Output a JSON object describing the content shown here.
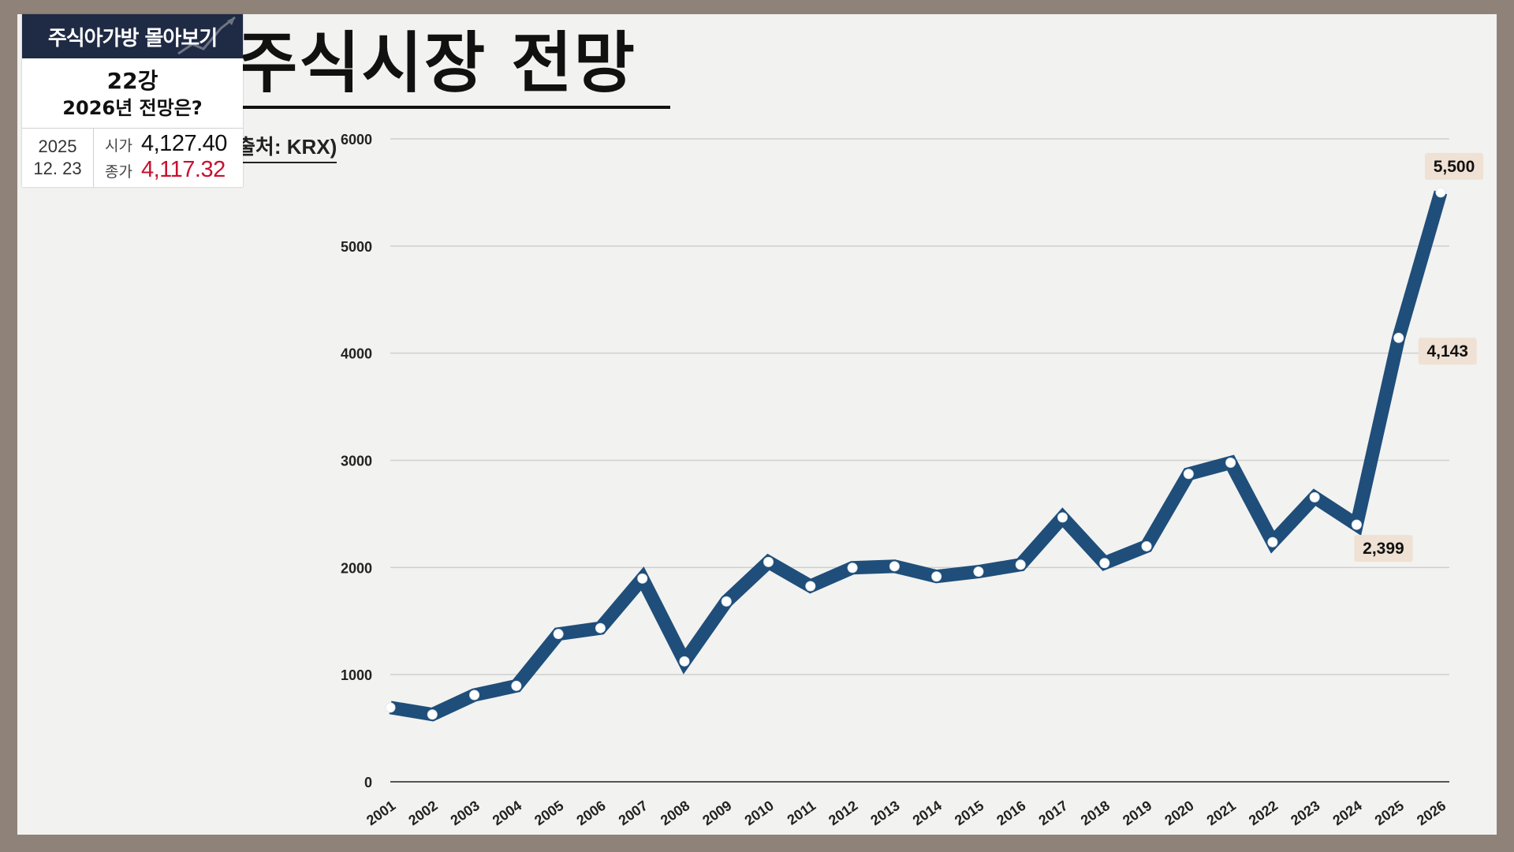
{
  "title": "주식시장 전망",
  "source": "출처: KRX)",
  "info": {
    "header": "주식아가방 몰아보기",
    "lesson": "22강",
    "subtitle": "2026년 전망은?",
    "date_year": "2025",
    "date_md": "12. 23",
    "open_label": "시가",
    "open_value": "4,127.40",
    "close_label": "종가",
    "close_value": "4,117.32",
    "close_color": "#c8102e",
    "header_bg": "#1f2a44"
  },
  "chart_data": {
    "type": "line",
    "title": "주식시장 전망",
    "xlabel": "",
    "ylabel": "",
    "ylim": [
      0,
      6000
    ],
    "yticks": [
      0,
      1000,
      2000,
      3000,
      4000,
      5000,
      6000
    ],
    "grid": true,
    "line_color": "#1f4e7a",
    "x": [
      "2001",
      "2002",
      "2003",
      "2004",
      "2005",
      "2006",
      "2007",
      "2008",
      "2009",
      "2010",
      "2011",
      "2012",
      "2013",
      "2014",
      "2015",
      "2016",
      "2017",
      "2018",
      "2019",
      "2020",
      "2021",
      "2022",
      "2023",
      "2024",
      "2025",
      "2026"
    ],
    "values": [
      693,
      628,
      810,
      895,
      1379,
      1434,
      1897,
      1124,
      1683,
      2051,
      1826,
      1997,
      2011,
      1916,
      1961,
      2026,
      2467,
      2041,
      2198,
      2873,
      2978,
      2236,
      2655,
      2399,
      4143,
      5500
    ],
    "annotations": [
      {
        "x": "2024",
        "label": "2,399"
      },
      {
        "x": "2025",
        "label": "4,143"
      },
      {
        "x": "2026",
        "label": "5,500"
      }
    ]
  }
}
